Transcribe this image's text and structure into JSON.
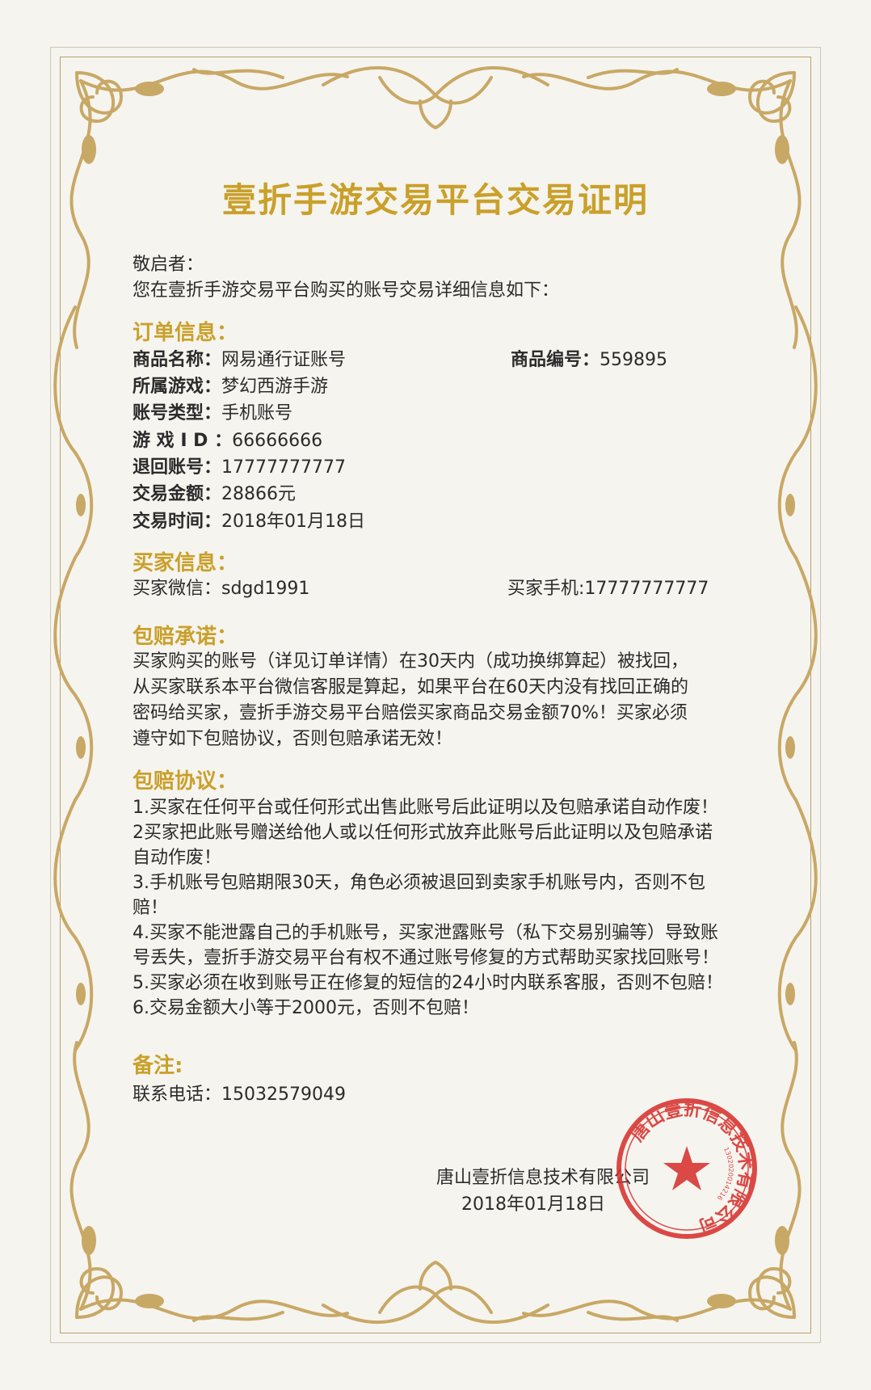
{
  "title": "壹折手游交易平台交易证明",
  "greeting": "敬启者：",
  "intro": "您在壹折手游交易平台购买的账号交易详细信息如下：",
  "order": {
    "heading": "订单信息：",
    "rows": [
      {
        "k": "商品名称：",
        "v": "网易通行证账号"
      },
      {
        "k": "所属游戏：",
        "v": "梦幻西游手游"
      },
      {
        "k": "账号类型：",
        "v": "手机账号"
      },
      {
        "k": "游 戏 I D ：",
        "v": "66666666"
      },
      {
        "k": "退回账号：",
        "v": "17777777777"
      },
      {
        "k": "交易金额：",
        "v": "28866元"
      },
      {
        "k": "交易时间：",
        "v": "2018年01月18日"
      }
    ],
    "item_no_label": "商品编号：",
    "item_no_value": "559895"
  },
  "buyer": {
    "heading": "买家信息：",
    "wechat": "买家微信：sdgd1991",
    "phone": "买家手机:17777777777"
  },
  "promise": {
    "heading": "包赔承诺：",
    "lines": [
      "买家购买的账号（详见订单详情）在30天内（成功换绑算起）被找回，",
      "从买家联系本平台微信客服是算起，如果平台在60天内没有找回正确的",
      "密码给买家，壹折手游交易平台赔偿买家商品交易金额70%！买家必须",
      "遵守如下包赔协议，否则包赔承诺无效！"
    ]
  },
  "agreement": {
    "heading": "包赔协议：",
    "lines": [
      "1.买家在任何平台或任何形式出售此账号后此证明以及包赔承诺自动作废！",
      "2买家把此账号赠送给他人或以任何形式放弃此账号后此证明以及包赔承诺",
      "自动作废！",
      "3.手机账号包赔期限30天，角色必须被退回到卖家手机账号内，否则不包",
      "赔！",
      "4.买家不能泄露自己的手机账号，买家泄露账号（私下交易别骗等）导致账",
      "号丢失，壹折手游交易平台有权不通过账号修复的方式帮助买家找回账号！",
      "5.买家必须在收到账号正在修复的短信的24小时内联系客服，否则不包赔！",
      "6.交易金额大小等于2000元，否则不包赔！"
    ]
  },
  "notes": {
    "heading": "备注:",
    "contact": "联系电话：15032579049"
  },
  "company": "唐山壹折信息技术有限公司",
  "date": "2018年01月18日",
  "seal": {
    "text": "唐山壹折信息技术有限公司",
    "code": "1302020014216",
    "color": "#d7322e"
  },
  "colors": {
    "gold": "#c9a02a",
    "ornament": "#c8a865",
    "background": "#f6f4ef"
  }
}
